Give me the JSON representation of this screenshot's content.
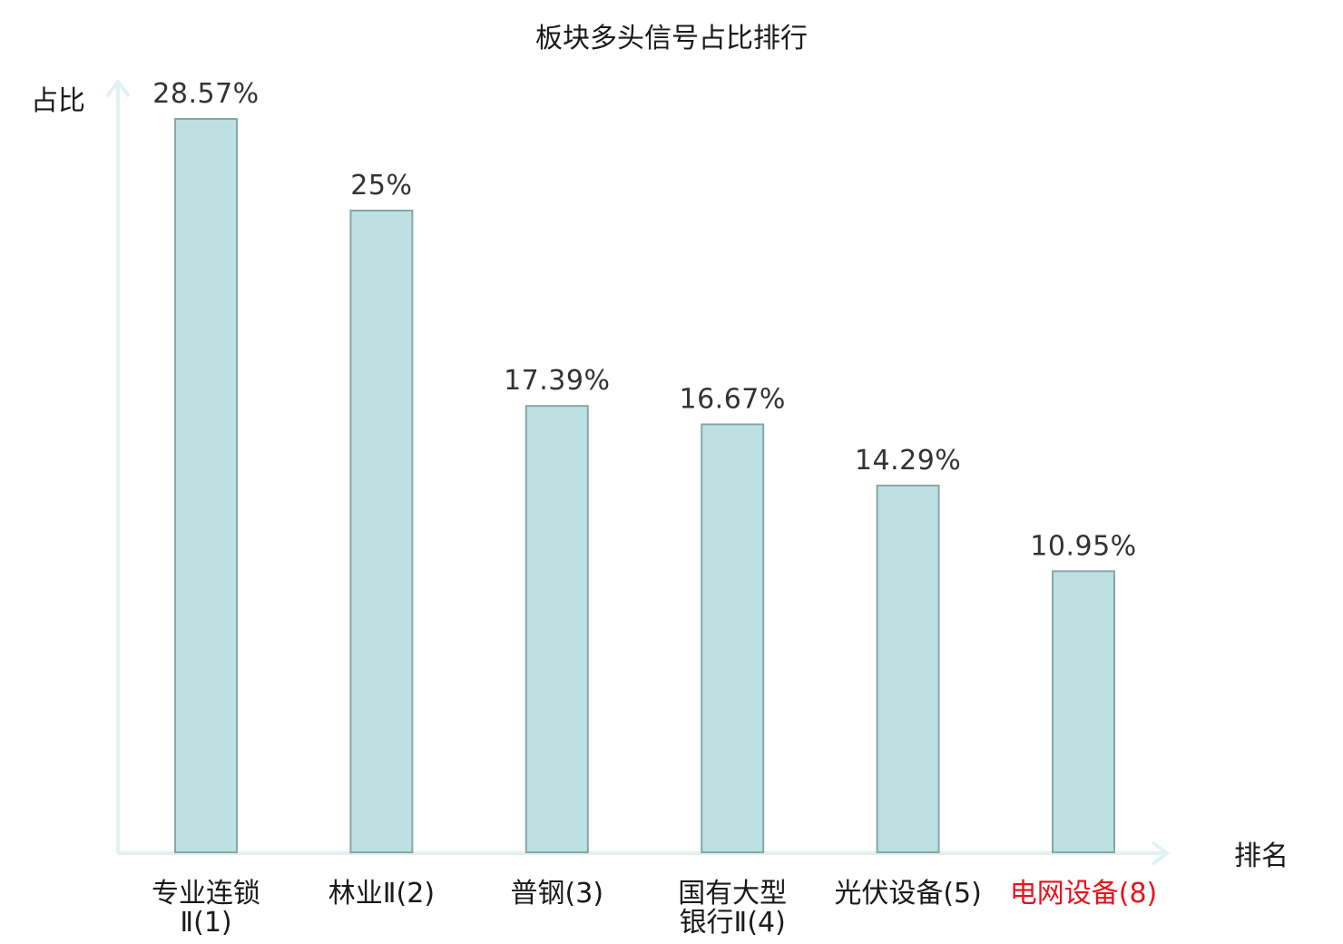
{
  "chart_data": {
    "type": "bar",
    "title": "板块多头信号占比排行",
    "ylabel": "占比",
    "xlabel": "排名",
    "categories": [
      [
        "专业连锁",
        "Ⅱ(1)"
      ],
      [
        "林业Ⅱ(2)"
      ],
      [
        "普钢(3)"
      ],
      [
        "国有大型",
        "银行Ⅱ(4)"
      ],
      [
        "光伏设备(5)"
      ],
      [
        "电网设备(8)"
      ]
    ],
    "values": [
      28.57,
      25,
      17.39,
      16.67,
      14.29,
      10.95
    ],
    "value_labels": [
      "28.57%",
      "25%",
      "17.39%",
      "16.67%",
      "14.29%",
      "10.95%"
    ],
    "highlight_index": 5,
    "ylim": [
      0,
      28.57
    ],
    "grid": false,
    "legend": "none",
    "colors": {
      "bar_fill": "#bde0e2",
      "bar_stroke": "#86a7a8",
      "axis": "#dff2ef",
      "label": "#1a1a1a",
      "value_label": "#333333",
      "highlight": "#e8121b"
    }
  }
}
